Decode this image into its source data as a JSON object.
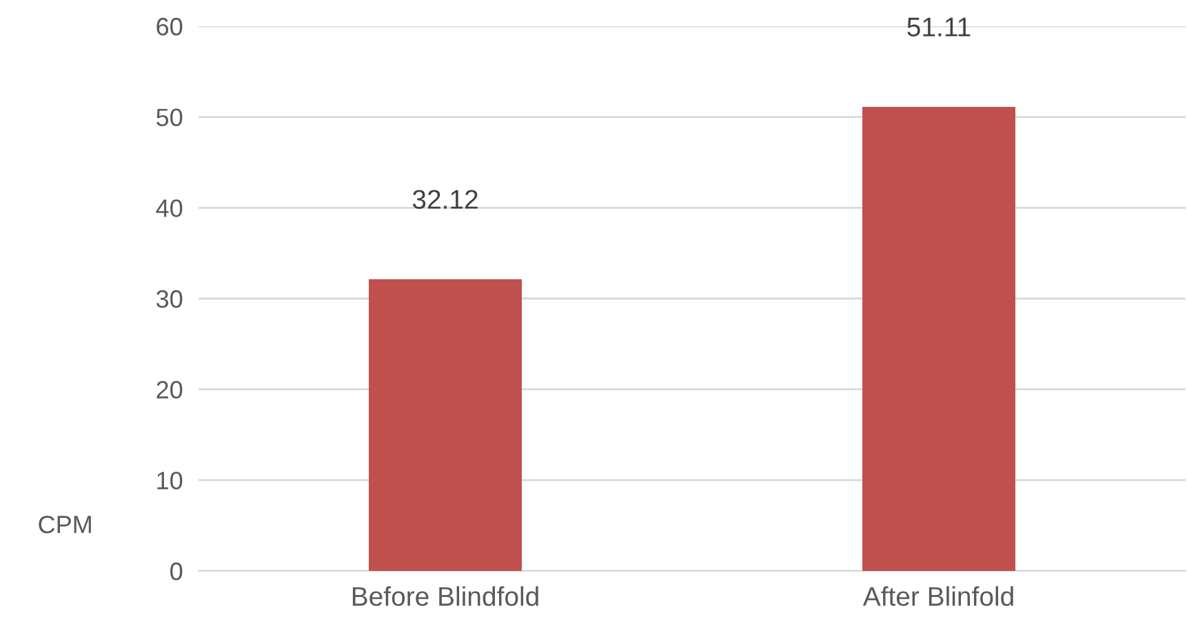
{
  "chart_data": {
    "type": "bar",
    "ylabel": "CPM",
    "categories": [
      "Before Blindfold",
      "After Blinfold"
    ],
    "values": [
      32.12,
      51.11
    ],
    "color": "#c0504d",
    "ylim": [
      0,
      60
    ],
    "yticks": [
      0,
      10,
      20,
      30,
      40,
      50,
      60
    ],
    "grid": "y",
    "data_labels": true
  }
}
